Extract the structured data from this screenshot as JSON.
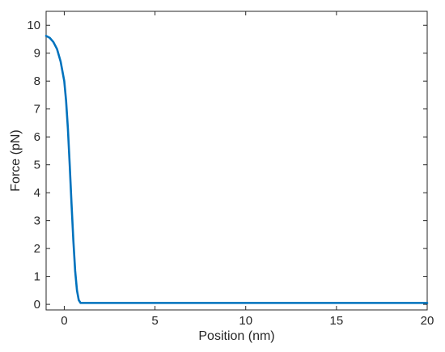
{
  "chart_data": {
    "type": "line",
    "xlabel": "Position (nm)",
    "ylabel": "Force (pN)",
    "xlim": [
      -1,
      20
    ],
    "ylim": [
      -0.2,
      10.5
    ],
    "xticks": [
      0,
      5,
      10,
      15,
      20
    ],
    "yticks": [
      0,
      1,
      2,
      3,
      4,
      5,
      6,
      7,
      8,
      9,
      10
    ],
    "grid": false,
    "box": true,
    "series": [
      {
        "color": "#0072BD",
        "x": [
          -1,
          -0.8,
          -0.6,
          -0.4,
          -0.2,
          0,
          0.1,
          0.2,
          0.3,
          0.4,
          0.5,
          0.6,
          0.7,
          0.8,
          0.9,
          1,
          2,
          5,
          10,
          15,
          20
        ],
        "y": [
          9.62,
          9.55,
          9.4,
          9.15,
          8.7,
          8.0,
          7.3,
          6.3,
          5.0,
          3.6,
          2.3,
          1.2,
          0.5,
          0.15,
          0.05,
          0.05,
          0.05,
          0.05,
          0.05,
          0.05,
          0.05
        ]
      }
    ]
  }
}
